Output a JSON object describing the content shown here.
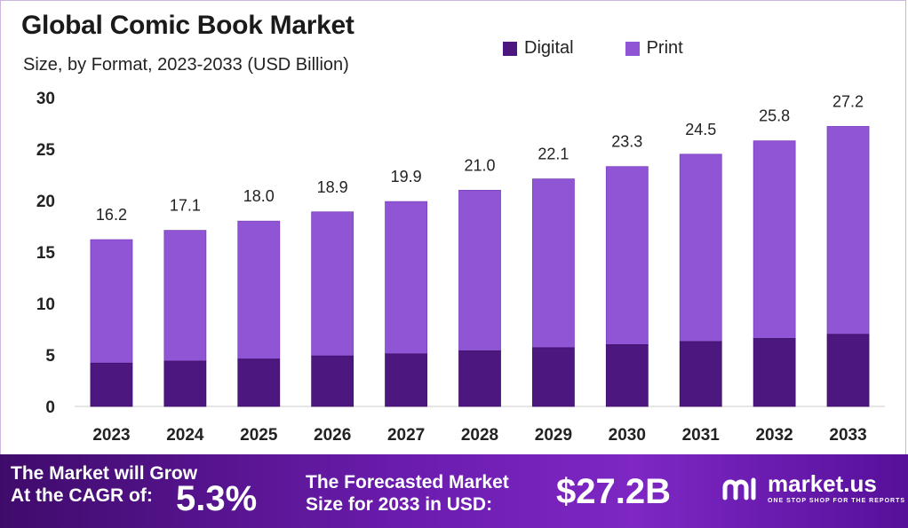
{
  "title": "Global Comic Book Market",
  "subtitle": "Size, by Format, 2023-2033 (USD Billion)",
  "colors": {
    "digital": "#4d1780",
    "print": "#9055d5",
    "axis": "#cccccc",
    "text": "#222222"
  },
  "chart_data": {
    "type": "bar",
    "stacked": true,
    "categories": [
      "2023",
      "2024",
      "2025",
      "2026",
      "2027",
      "2028",
      "2029",
      "2030",
      "2031",
      "2032",
      "2033"
    ],
    "series": [
      {
        "name": "Digital",
        "values": [
          4.2,
          4.4,
          4.6,
          4.9,
          5.1,
          5.4,
          5.7,
          6.0,
          6.3,
          6.6,
          7.0
        ]
      },
      {
        "name": "Print",
        "values": [
          12.0,
          12.7,
          13.4,
          14.0,
          14.8,
          15.6,
          16.4,
          17.3,
          18.2,
          19.2,
          20.2
        ]
      }
    ],
    "totals": [
      16.2,
      17.1,
      18.0,
      18.9,
      19.9,
      21.0,
      22.1,
      23.3,
      24.5,
      25.8,
      27.2
    ],
    "total_labels": [
      "16.2",
      "17.1",
      "18.0",
      "18.9",
      "19.9",
      "21.0",
      "22.1",
      "23.3",
      "24.5",
      "25.8",
      "27.2"
    ],
    "yticks": [
      "0",
      "5",
      "10",
      "15",
      "20",
      "25",
      "30"
    ],
    "ylim": [
      0,
      30
    ],
    "grid": false,
    "legend": "top-right"
  },
  "banner": {
    "cagr_line1": "The Market will Grow",
    "cagr_line2": "At the CAGR of:",
    "cagr_value": "5.3%",
    "forecast_line1": "The Forecasted Market",
    "forecast_line2": "Size for 2033 in USD:",
    "forecast_value": "$27.2B",
    "logo_name": "market.us",
    "logo_tagline": "ONE STOP SHOP FOR THE REPORTS"
  }
}
